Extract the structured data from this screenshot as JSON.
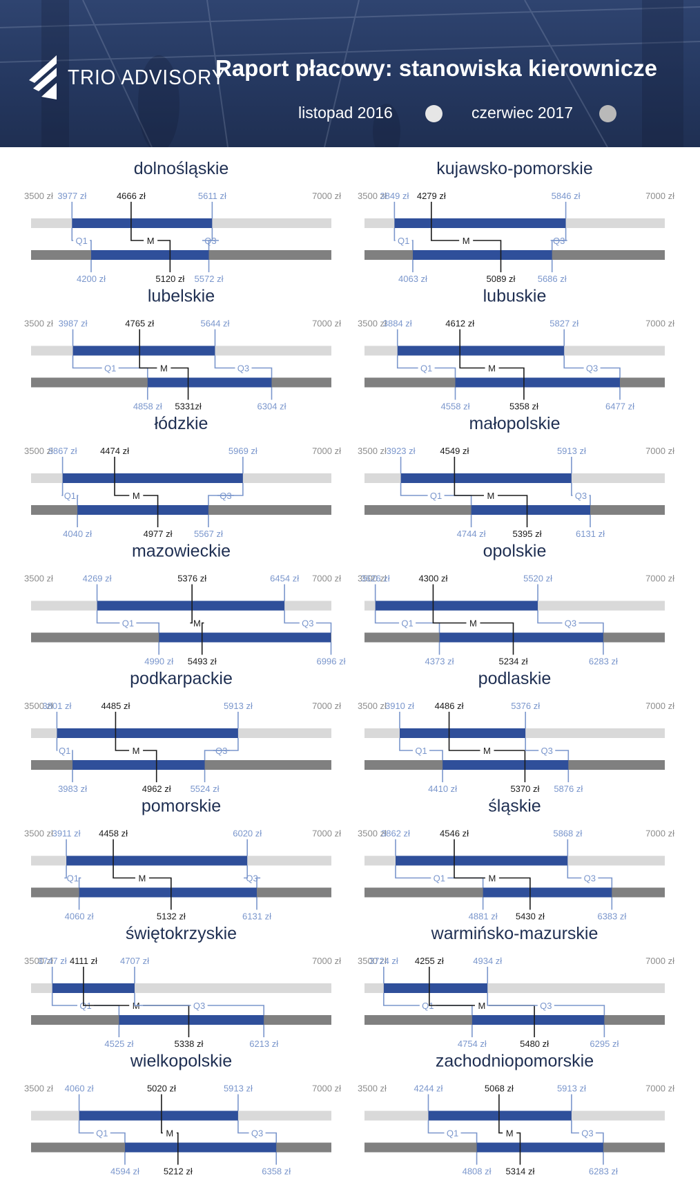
{
  "header": {
    "logo_text": "TRIO ADVISORY",
    "title": "Raport płacowy: stanowiska kierownicze",
    "period_1": "listopad 2016",
    "period_2": "czerwiec 2017"
  },
  "colors": {
    "header_bg": "#253860",
    "bar_2016_track": "#d9d9d9",
    "bar_2017_track": "#808080",
    "iqr_fill": "#2f4f9a",
    "label_blue": "#7a96cc",
    "label_dark": "#1a1a1a",
    "region_title": "#1f2f52",
    "legend_dot_2016": "#e6e6e6",
    "legend_dot_2017": "#b9b9b9"
  },
  "chart_data": {
    "type": "range-bar",
    "currency": "zł",
    "axis": {
      "min": 3500,
      "max": 7000,
      "min_label": "3500 zł",
      "max_label": "7000 zł"
    },
    "markers": {
      "q1": "Q1",
      "median": "M",
      "q3": "Q3"
    },
    "series_names": [
      "listopad 2016",
      "czerwiec 2017"
    ],
    "regions": [
      {
        "name": "dolnośląskie",
        "y2016": {
          "q1": 3977,
          "median": 4666,
          "q3": 5611,
          "labels": [
            "3977 zł",
            "4666 zł",
            "5611 zł"
          ]
        },
        "y2017": {
          "q1": 4200,
          "median": 5120,
          "q3": 5572,
          "labels": [
            "4200 zł",
            "5120 zł",
            "5572 zł"
          ]
        }
      },
      {
        "name": "kujawsko-pomorskie",
        "y2016": {
          "q1": 3849,
          "median": 4279,
          "q3": 5846,
          "labels": [
            "3849 zł",
            "4279 zł",
            "5846 zł"
          ]
        },
        "y2017": {
          "q1": 4063,
          "median": 5089,
          "q3": 5686,
          "labels": [
            "4063 zł",
            "5089 zł",
            "5686 zł"
          ]
        }
      },
      {
        "name": "lubelskie",
        "y2016": {
          "q1": 3987,
          "median": 4765,
          "q3": 5644,
          "labels": [
            "3987 zł",
            "4765 zł",
            "5644 zł"
          ]
        },
        "y2017": {
          "q1": 4858,
          "median": 5331,
          "q3": 6304,
          "labels": [
            "4858 zł",
            "5331zł",
            "6304 zł"
          ]
        }
      },
      {
        "name": "lubuskie",
        "y2016": {
          "q1": 3884,
          "median": 4612,
          "q3": 5827,
          "labels": [
            "3884 zł",
            "4612 zł",
            "5827 zł"
          ]
        },
        "y2017": {
          "q1": 4558,
          "median": 5358,
          "q3": 6477,
          "labels": [
            "4558 zł",
            "5358 zł",
            "6477 zł"
          ]
        }
      },
      {
        "name": "łódzkie",
        "y2016": {
          "q1": 3867,
          "median": 4474,
          "q3": 5969,
          "labels": [
            "3867 zł",
            "4474 zł",
            "5969 zł"
          ]
        },
        "y2017": {
          "q1": 4040,
          "median": 4977,
          "q3": 5567,
          "labels": [
            "4040 zł",
            "4977 zł",
            "5567 zł"
          ]
        }
      },
      {
        "name": "małopolskie",
        "y2016": {
          "q1": 3923,
          "median": 4549,
          "q3": 5913,
          "labels": [
            "3923 zł",
            "4549 zł",
            "5913 zł"
          ]
        },
        "y2017": {
          "q1": 4744,
          "median": 5395,
          "q3": 6131,
          "labels": [
            "4744 zł",
            "5395 zł",
            "6131 zł"
          ]
        }
      },
      {
        "name": "mazowieckie",
        "y2016": {
          "q1": 4269,
          "median": 5376,
          "q3": 6454,
          "labels": [
            "4269 zł",
            "5376 zł",
            "6454 zł"
          ]
        },
        "y2017": {
          "q1": 4990,
          "median": 5493,
          "q3": 6996,
          "labels": [
            "4990 zł",
            "5493 zł",
            "6996 zł"
          ]
        }
      },
      {
        "name": "opolskie",
        "y2016": {
          "q1": 3626,
          "median": 4300,
          "q3": 5520,
          "labels": [
            "3626 zł",
            "4300 zł",
            "5520 zł"
          ]
        },
        "y2017": {
          "q1": 4373,
          "median": 5234,
          "q3": 6283,
          "labels": [
            "4373 zł",
            "5234 zł",
            "6283 zł"
          ]
        }
      },
      {
        "name": "podkarpackie",
        "y2016": {
          "q1": 3801,
          "median": 4485,
          "q3": 5913,
          "labels": [
            "3801 zł",
            "4485 zł",
            "5913 zł"
          ]
        },
        "y2017": {
          "q1": 3983,
          "median": 4962,
          "q3": 5524,
          "labels": [
            "3983 zł",
            "4962 zł",
            "5524 zł"
          ]
        }
      },
      {
        "name": "podlaskie",
        "y2016": {
          "q1": 3910,
          "median": 4486,
          "q3": 5376,
          "labels": [
            "3910 zł",
            "4486 zł",
            "5376 zł"
          ]
        },
        "y2017": {
          "q1": 4410,
          "median": 5370,
          "q3": 5876,
          "labels": [
            "4410 zł",
            "5370 zł",
            "5876 zł"
          ]
        }
      },
      {
        "name": "pomorskie",
        "y2016": {
          "q1": 3911,
          "median": 4458,
          "q3": 6020,
          "labels": [
            "3911 zł",
            "4458 zł",
            "6020 zł"
          ]
        },
        "y2017": {
          "q1": 4060,
          "median": 5132,
          "q3": 6131,
          "labels": [
            "4060 zł",
            "5132 zł",
            "6131 zł"
          ]
        }
      },
      {
        "name": "śląskie",
        "y2016": {
          "q1": 3862,
          "median": 4546,
          "q3": 5868,
          "labels": [
            "3862 zł",
            "4546 zł",
            "5868 zł"
          ]
        },
        "y2017": {
          "q1": 4881,
          "median": 5430,
          "q3": 6383,
          "labels": [
            "4881 zł",
            "5430 zł",
            "6383 zł"
          ]
        }
      },
      {
        "name": "świętokrzyskie",
        "y2016": {
          "q1": 3747,
          "median": 4111,
          "q3": 4707,
          "labels": [
            "3747 zł",
            "4111 zł",
            "4707 zł"
          ]
        },
        "y2017": {
          "q1": 4525,
          "median": 5338,
          "q3": 6213,
          "labels": [
            "4525 zł",
            "5338 zł",
            "6213 zł"
          ]
        }
      },
      {
        "name": "warmińsko-mazurskie",
        "y2016": {
          "q1": 3724,
          "median": 4255,
          "q3": 4934,
          "labels": [
            "3724 zł",
            "4255 zł",
            "4934 zł"
          ]
        },
        "y2017": {
          "q1": 4754,
          "median": 5480,
          "q3": 6295,
          "labels": [
            "4754 zł",
            "5480 zł",
            "6295 zł"
          ]
        }
      },
      {
        "name": "wielkopolskie",
        "y2016": {
          "q1": 4060,
          "median": 5020,
          "q3": 5913,
          "labels": [
            "4060 zł",
            "5020 zł",
            "5913 zł"
          ]
        },
        "y2017": {
          "q1": 4594,
          "median": 5212,
          "q3": 6358,
          "labels": [
            "4594 zł",
            "5212 zł",
            "6358 zł"
          ]
        }
      },
      {
        "name": "zachodniopomorskie",
        "y2016": {
          "q1": 4244,
          "median": 5068,
          "q3": 5913,
          "labels": [
            "4244 zł",
            "5068 zł",
            "5913 zł"
          ]
        },
        "y2017": {
          "q1": 4808,
          "median": 5314,
          "q3": 6283,
          "labels": [
            "4808 zł",
            "5314 zł",
            "6283 zł"
          ]
        }
      }
    ]
  }
}
